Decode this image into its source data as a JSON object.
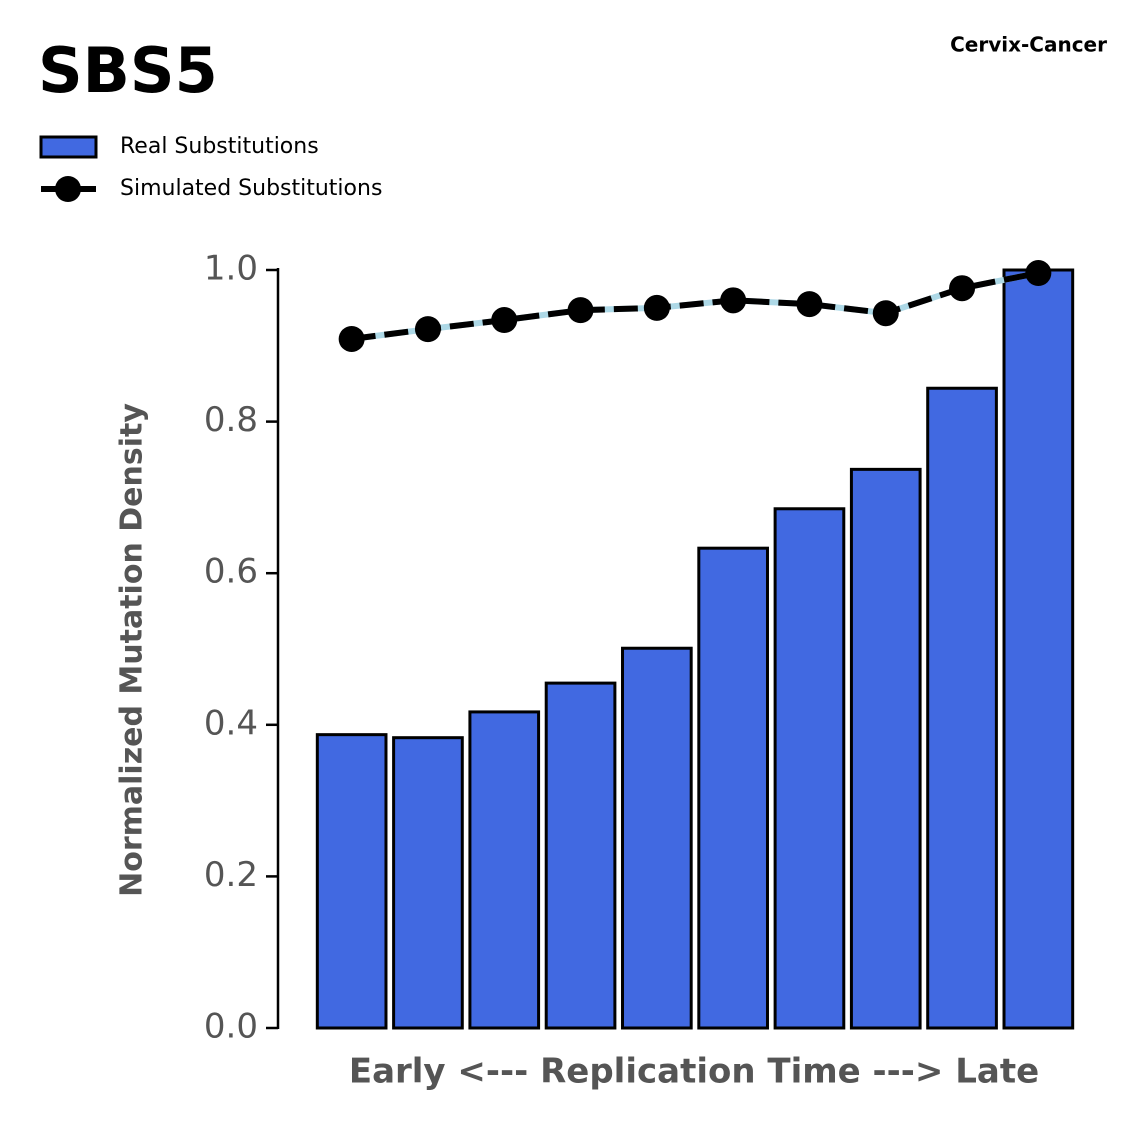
{
  "chart_data": {
    "type": "bar",
    "title": "SBS5",
    "subtitle": "Cervix-Cancer",
    "x_label": "Early <--- Replication Time ---> Late",
    "y_label": "Normalized Mutation Density",
    "categories": [
      null,
      null,
      null,
      null,
      null,
      null,
      null,
      null,
      null,
      null
    ],
    "series": [
      {
        "name": "Real Substitutions",
        "type": "bar",
        "color": "#4169e1",
        "edgecolor": "#000000",
        "values": [
          0.387,
          0.383,
          0.417,
          0.455,
          0.501,
          0.633,
          0.685,
          0.737,
          0.844,
          1.0
        ]
      },
      {
        "name": "Simulated Substitutions",
        "type": "line",
        "color": "#000000",
        "underlay_color": "#add8e6",
        "values": [
          0.909,
          0.922,
          0.934,
          0.947,
          0.95,
          0.96,
          0.955,
          0.943,
          0.976,
          0.996
        ]
      }
    ],
    "ylim": [
      0,
      1
    ],
    "yticks": [
      {
        "value": 0,
        "label": "0.0"
      },
      0.2,
      0.4,
      0.6,
      0.8,
      {
        "value": 1,
        "label": "1.0"
      }
    ],
    "grid": false,
    "legend": "upper left"
  }
}
